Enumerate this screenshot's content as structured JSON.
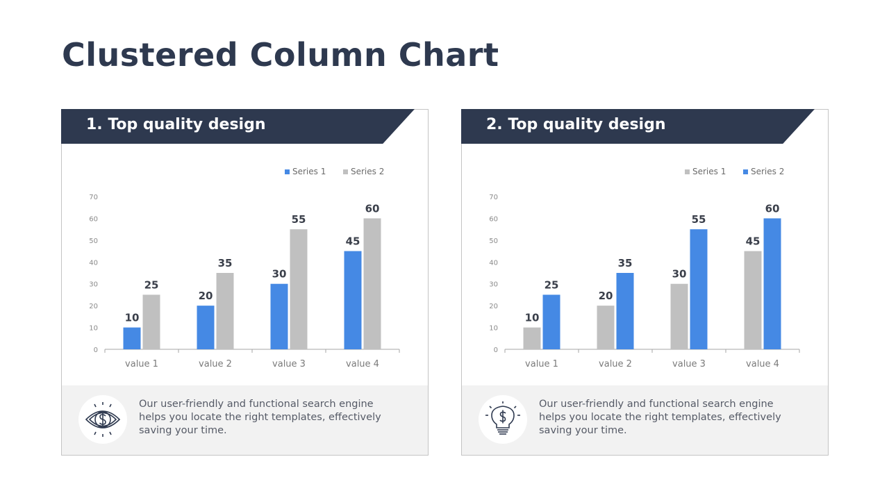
{
  "page": {
    "title": "Clustered Column Chart"
  },
  "colors": {
    "header": "#2e394f",
    "blue": "#4589e4",
    "gray": "#c0c0c0"
  },
  "cards": [
    {
      "title": "1. Top quality design",
      "icon": "eye-dollar-icon",
      "description": "Our user-friendly and functional search engine helps you locate the right templates, effectively saving your time."
    },
    {
      "title": "2. Top quality design",
      "icon": "lightbulb-dollar-icon",
      "description": "Our user-friendly and functional search engine helps you locate the right templates, effectively saving your time."
    }
  ],
  "chart_data": [
    {
      "type": "bar",
      "categories": [
        "value 1",
        "value 2",
        "value 3",
        "value 4"
      ],
      "series": [
        {
          "name": "Series 1",
          "values": [
            10,
            20,
            30,
            45
          ],
          "color": "#4589e4"
        },
        {
          "name": "Series 2",
          "values": [
            25,
            35,
            55,
            60
          ],
          "color": "#c0c0c0"
        }
      ],
      "ylim": [
        0,
        70
      ],
      "yticks": [
        0,
        10,
        20,
        30,
        40,
        50,
        60,
        70
      ],
      "legend": "top-right",
      "grid": false
    },
    {
      "type": "bar",
      "categories": [
        "value 1",
        "value 2",
        "value 3",
        "value 4"
      ],
      "series": [
        {
          "name": "Series 1",
          "values": [
            10,
            20,
            30,
            45
          ],
          "color": "#c0c0c0"
        },
        {
          "name": "Series 2",
          "values": [
            25,
            35,
            55,
            60
          ],
          "color": "#4589e4"
        }
      ],
      "ylim": [
        0,
        70
      ],
      "yticks": [
        0,
        10,
        20,
        30,
        40,
        50,
        60,
        70
      ],
      "legend": "top-right",
      "grid": false
    }
  ]
}
